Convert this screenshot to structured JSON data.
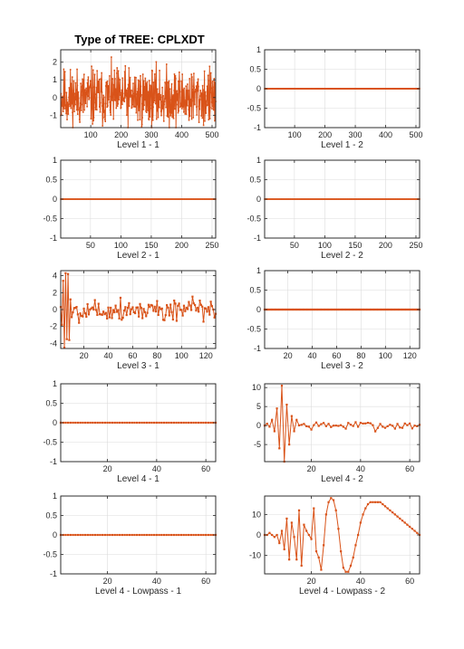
{
  "figure": {
    "title": "Type of TREE: CPLXDT",
    "line_color": "#D95319"
  },
  "chart_data": [
    {
      "type": "line",
      "xlabel": "Level 1 - 1",
      "xlim": [
        1,
        512
      ],
      "ylim": [
        -1.7,
        2.7
      ],
      "xticks": [
        100,
        200,
        300,
        400,
        500
      ],
      "yticks": [
        -1,
        0,
        1,
        2
      ],
      "gen": {
        "n": 512,
        "mode": "noise",
        "amp": 0.8,
        "seed": 11
      },
      "grid": true
    },
    {
      "type": "line",
      "xlabel": "Level 1 - 2",
      "xlim": [
        1,
        512
      ],
      "ylim": [
        -1,
        1
      ],
      "xticks": [
        100,
        200,
        300,
        400,
        500
      ],
      "yticks": [
        -1,
        -0.5,
        0,
        0.5,
        1
      ],
      "gen": {
        "n": 512,
        "mode": "zero"
      },
      "grid": true
    },
    {
      "type": "line",
      "xlabel": "Level 2 - 1",
      "xlim": [
        1,
        256
      ],
      "ylim": [
        -1,
        1
      ],
      "xticks": [
        50,
        100,
        150,
        200,
        250
      ],
      "yticks": [
        -1,
        -0.5,
        0,
        0.5,
        1
      ],
      "gen": {
        "n": 256,
        "mode": "zero"
      },
      "grid": true
    },
    {
      "type": "line",
      "xlabel": "Level 2 - 2",
      "xlim": [
        1,
        256
      ],
      "ylim": [
        -1,
        1
      ],
      "xticks": [
        50,
        100,
        150,
        200,
        250
      ],
      "yticks": [
        -1,
        -0.5,
        0,
        0.5,
        1
      ],
      "gen": {
        "n": 256,
        "mode": "zero"
      },
      "grid": true
    },
    {
      "type": "line",
      "xlabel": "Level 3 - 1",
      "xlim": [
        1,
        128
      ],
      "ylim": [
        -4.6,
        4.6
      ],
      "xticks": [
        20,
        40,
        60,
        80,
        100,
        120
      ],
      "yticks": [
        -4,
        -2,
        0,
        2,
        4
      ],
      "gen": {
        "n": 128,
        "mode": "burst",
        "amp": 0.7,
        "seed": 5,
        "burst": [
          0.3,
          -1.8,
          3.4,
          -4.5,
          4.3,
          -3.5,
          4.2,
          -3.6,
          1.2,
          -0.9
        ]
      },
      "grid": true
    },
    {
      "type": "line",
      "xlabel": "Level 3 - 2",
      "xlim": [
        1,
        128
      ],
      "ylim": [
        -1,
        1
      ],
      "xticks": [
        20,
        40,
        60,
        80,
        100,
        120
      ],
      "yticks": [
        -1,
        -0.5,
        0,
        0.5,
        1
      ],
      "gen": {
        "n": 128,
        "mode": "zero"
      },
      "grid": true
    },
    {
      "type": "line",
      "xlabel": "Level 4 - 1",
      "xlim": [
        1,
        64
      ],
      "ylim": [
        -1,
        1
      ],
      "xticks": [
        20,
        40,
        60
      ],
      "yticks": [
        -1,
        -0.5,
        0,
        0.5,
        1
      ],
      "gen": {
        "n": 64,
        "mode": "zero"
      },
      "grid": true
    },
    {
      "type": "line",
      "xlabel": "Level 4 - 2",
      "xlim": [
        1,
        64
      ],
      "ylim": [
        -9.5,
        11
      ],
      "xticks": [
        20,
        40,
        60
      ],
      "yticks": [
        -5,
        0,
        5,
        10
      ],
      "gen": {
        "n": 64,
        "mode": "burst",
        "amp": 0.6,
        "seed": 7,
        "burst": [
          0,
          0.5,
          -0.3,
          1.5,
          -1.5,
          4.5,
          -6,
          10.5,
          -9.5,
          5.5,
          -5,
          2.5,
          -1.5,
          1.5
        ]
      },
      "grid": true
    },
    {
      "type": "line",
      "xlabel": "Level 4 - Lowpass - 1",
      "xlim": [
        1,
        64
      ],
      "ylim": [
        -1,
        1
      ],
      "xticks": [
        20,
        40,
        60
      ],
      "yticks": [
        -1,
        -0.5,
        0,
        0.5,
        1
      ],
      "gen": {
        "n": 64,
        "mode": "zero"
      },
      "grid": true
    },
    {
      "type": "line",
      "xlabel": "Level 4 - Lowpass - 2",
      "xlim": [
        1,
        64
      ],
      "ylim": [
        -19,
        19
      ],
      "xticks": [
        20,
        40,
        60
      ],
      "yticks": [
        -10,
        0,
        10
      ],
      "gen": {
        "n": 64,
        "mode": "list",
        "values": [
          0,
          0,
          1,
          0,
          -1,
          0,
          -4,
          2,
          -7,
          8,
          -12,
          6,
          -1,
          -12,
          12,
          -15,
          5,
          2,
          0,
          -2,
          13,
          -8,
          -11,
          -17,
          -5,
          10,
          16,
          18,
          17,
          12,
          3,
          -8,
          -16,
          -18,
          -18,
          -15,
          -11,
          -5,
          0,
          6,
          10,
          13,
          15,
          16,
          16,
          16,
          16,
          16,
          15,
          14,
          13,
          12,
          11,
          10,
          9,
          8,
          7,
          6,
          5,
          4,
          3,
          2,
          1,
          0
        ]
      },
      "grid": true
    }
  ]
}
